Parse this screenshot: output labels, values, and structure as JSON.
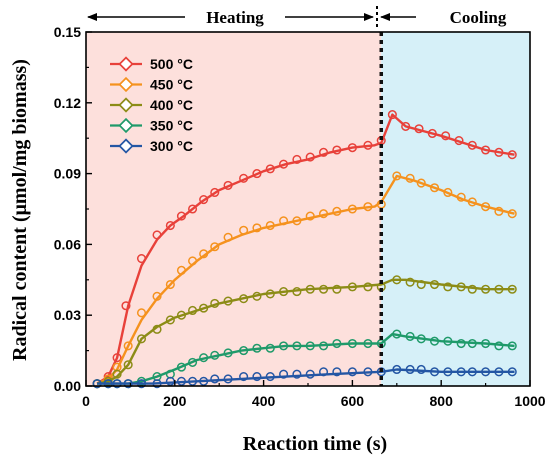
{
  "chart_data": {
    "type": "line",
    "xlabel": "Reaction time (s)",
    "ylabel": "Radical content (μmol/mg biomass)",
    "xlim": [
      0,
      1000
    ],
    "ylim": [
      0,
      0.15
    ],
    "xticks": [
      "0",
      "200",
      "400",
      "600",
      "800",
      "1000"
    ],
    "yticks": [
      "0.00",
      "0.03",
      "0.06",
      "0.09",
      "0.12",
      "0.15"
    ],
    "grid": false,
    "legend_position": "top-left",
    "phases": [
      {
        "label": "Heating",
        "x_start": 0,
        "x_end": 665,
        "color": "#fde0dc"
      },
      {
        "label": "Cooling",
        "x_start": 665,
        "x_end": 1000,
        "color": "#d6f0f8"
      }
    ],
    "phase_boundary_x": 665,
    "colors": {
      "500": "#e8413a",
      "450": "#f5921e",
      "400": "#8c8c16",
      "350": "#1f9a6a",
      "300": "#2456a4"
    },
    "series": [
      {
        "name": "500  °C",
        "key": "500",
        "points": [
          [
            25,
            0.001
          ],
          [
            50,
            0.004
          ],
          [
            70,
            0.012
          ],
          [
            90,
            0.034
          ],
          [
            125,
            0.054
          ],
          [
            160,
            0.064
          ],
          [
            190,
            0.068
          ],
          [
            215,
            0.072
          ],
          [
            240,
            0.075
          ],
          [
            265,
            0.079
          ],
          [
            290,
            0.082
          ],
          [
            320,
            0.085
          ],
          [
            355,
            0.088
          ],
          [
            385,
            0.09
          ],
          [
            415,
            0.092
          ],
          [
            445,
            0.094
          ],
          [
            475,
            0.096
          ],
          [
            505,
            0.097
          ],
          [
            535,
            0.099
          ],
          [
            565,
            0.1
          ],
          [
            600,
            0.101
          ],
          [
            635,
            0.102
          ],
          [
            665,
            0.104
          ],
          [
            690,
            0.115
          ],
          [
            720,
            0.11
          ],
          [
            750,
            0.109
          ],
          [
            780,
            0.107
          ],
          [
            810,
            0.106
          ],
          [
            840,
            0.104
          ],
          [
            870,
            0.102
          ],
          [
            900,
            0.1
          ],
          [
            930,
            0.099
          ],
          [
            960,
            0.098
          ]
        ],
        "line": [
          [
            25,
            0.001
          ],
          [
            50,
            0.004
          ],
          [
            70,
            0.012
          ],
          [
            95,
            0.034
          ],
          [
            125,
            0.051
          ],
          [
            160,
            0.062
          ],
          [
            190,
            0.068
          ],
          [
            220,
            0.072
          ],
          [
            260,
            0.078
          ],
          [
            300,
            0.083
          ],
          [
            350,
            0.087
          ],
          [
            400,
            0.091
          ],
          [
            450,
            0.094
          ],
          [
            500,
            0.096
          ],
          [
            550,
            0.099
          ],
          [
            600,
            0.101
          ],
          [
            650,
            0.102
          ],
          [
            665,
            0.103
          ],
          [
            690,
            0.115
          ],
          [
            720,
            0.11
          ],
          [
            760,
            0.108
          ],
          [
            800,
            0.106
          ],
          [
            850,
            0.103
          ],
          [
            900,
            0.1
          ],
          [
            965,
            0.098
          ]
        ]
      },
      {
        "name": "450  °C",
        "key": "450",
        "points": [
          [
            25,
            0.001
          ],
          [
            50,
            0.003
          ],
          [
            70,
            0.008
          ],
          [
            95,
            0.017
          ],
          [
            125,
            0.031
          ],
          [
            160,
            0.038
          ],
          [
            190,
            0.043
          ],
          [
            215,
            0.049
          ],
          [
            240,
            0.053
          ],
          [
            265,
            0.056
          ],
          [
            290,
            0.059
          ],
          [
            320,
            0.063
          ],
          [
            355,
            0.066
          ],
          [
            385,
            0.067
          ],
          [
            415,
            0.068
          ],
          [
            445,
            0.07
          ],
          [
            475,
            0.07
          ],
          [
            505,
            0.072
          ],
          [
            535,
            0.073
          ],
          [
            565,
            0.074
          ],
          [
            600,
            0.075
          ],
          [
            635,
            0.076
          ],
          [
            665,
            0.077
          ],
          [
            700,
            0.089
          ],
          [
            730,
            0.088
          ],
          [
            755,
            0.086
          ],
          [
            785,
            0.084
          ],
          [
            815,
            0.082
          ],
          [
            845,
            0.08
          ],
          [
            870,
            0.078
          ],
          [
            900,
            0.076
          ],
          [
            930,
            0.074
          ],
          [
            960,
            0.073
          ]
        ],
        "line": [
          [
            25,
            0.001
          ],
          [
            50,
            0.003
          ],
          [
            70,
            0.007
          ],
          [
            95,
            0.017
          ],
          [
            125,
            0.028
          ],
          [
            160,
            0.037
          ],
          [
            200,
            0.045
          ],
          [
            250,
            0.053
          ],
          [
            300,
            0.06
          ],
          [
            350,
            0.064
          ],
          [
            400,
            0.067
          ],
          [
            450,
            0.069
          ],
          [
            500,
            0.071
          ],
          [
            550,
            0.073
          ],
          [
            600,
            0.075
          ],
          [
            650,
            0.076
          ],
          [
            665,
            0.078
          ],
          [
            700,
            0.089
          ],
          [
            740,
            0.087
          ],
          [
            800,
            0.083
          ],
          [
            850,
            0.079
          ],
          [
            900,
            0.076
          ],
          [
            965,
            0.073
          ]
        ]
      },
      {
        "name": "400  °C",
        "key": "400",
        "points": [
          [
            25,
            0.001
          ],
          [
            50,
            0.002
          ],
          [
            70,
            0.005
          ],
          [
            95,
            0.009
          ],
          [
            125,
            0.02
          ],
          [
            160,
            0.024
          ],
          [
            190,
            0.028
          ],
          [
            215,
            0.03
          ],
          [
            240,
            0.032
          ],
          [
            265,
            0.033
          ],
          [
            290,
            0.035
          ],
          [
            320,
            0.036
          ],
          [
            355,
            0.037
          ],
          [
            385,
            0.038
          ],
          [
            415,
            0.039
          ],
          [
            445,
            0.04
          ],
          [
            475,
            0.04
          ],
          [
            505,
            0.041
          ],
          [
            535,
            0.041
          ],
          [
            565,
            0.041
          ],
          [
            600,
            0.042
          ],
          [
            635,
            0.042
          ],
          [
            665,
            0.042
          ],
          [
            700,
            0.045
          ],
          [
            730,
            0.044
          ],
          [
            755,
            0.043
          ],
          [
            785,
            0.043
          ],
          [
            815,
            0.042
          ],
          [
            845,
            0.042
          ],
          [
            870,
            0.041
          ],
          [
            900,
            0.041
          ],
          [
            930,
            0.041
          ],
          [
            960,
            0.041
          ]
        ],
        "line": [
          [
            25,
            0.001
          ],
          [
            50,
            0.002
          ],
          [
            70,
            0.004
          ],
          [
            95,
            0.009
          ],
          [
            125,
            0.02
          ],
          [
            160,
            0.025
          ],
          [
            200,
            0.029
          ],
          [
            250,
            0.032
          ],
          [
            300,
            0.035
          ],
          [
            350,
            0.037
          ],
          [
            400,
            0.039
          ],
          [
            450,
            0.04
          ],
          [
            500,
            0.041
          ],
          [
            600,
            0.042
          ],
          [
            665,
            0.043
          ],
          [
            690,
            0.045
          ],
          [
            720,
            0.045
          ],
          [
            800,
            0.043
          ],
          [
            900,
            0.041
          ],
          [
            965,
            0.041
          ]
        ]
      },
      {
        "name": "350  °C",
        "key": "350",
        "points": [
          [
            25,
            0.001
          ],
          [
            50,
            0.001
          ],
          [
            70,
            0.001
          ],
          [
            95,
            0.001
          ],
          [
            125,
            0.002
          ],
          [
            160,
            0.004
          ],
          [
            190,
            0.005
          ],
          [
            215,
            0.008
          ],
          [
            240,
            0.01
          ],
          [
            265,
            0.012
          ],
          [
            290,
            0.013
          ],
          [
            320,
            0.014
          ],
          [
            355,
            0.015
          ],
          [
            385,
            0.016
          ],
          [
            415,
            0.016
          ],
          [
            445,
            0.017
          ],
          [
            475,
            0.017
          ],
          [
            505,
            0.017
          ],
          [
            535,
            0.017
          ],
          [
            565,
            0.018
          ],
          [
            600,
            0.018
          ],
          [
            635,
            0.018
          ],
          [
            665,
            0.018
          ],
          [
            700,
            0.022
          ],
          [
            730,
            0.021
          ],
          [
            755,
            0.02
          ],
          [
            785,
            0.019
          ],
          [
            815,
            0.019
          ],
          [
            845,
            0.018
          ],
          [
            870,
            0.018
          ],
          [
            900,
            0.018
          ],
          [
            930,
            0.017
          ],
          [
            960,
            0.017
          ]
        ],
        "line": [
          [
            25,
            0.001
          ],
          [
            95,
            0.001
          ],
          [
            125,
            0.002
          ],
          [
            160,
            0.004
          ],
          [
            200,
            0.007
          ],
          [
            250,
            0.011
          ],
          [
            300,
            0.013
          ],
          [
            350,
            0.015
          ],
          [
            400,
            0.016
          ],
          [
            450,
            0.017
          ],
          [
            500,
            0.017
          ],
          [
            600,
            0.018
          ],
          [
            665,
            0.018
          ],
          [
            690,
            0.022
          ],
          [
            720,
            0.021
          ],
          [
            800,
            0.019
          ],
          [
            900,
            0.018
          ],
          [
            965,
            0.017
          ]
        ]
      },
      {
        "name": "300  °C",
        "key": "300",
        "points": [
          [
            25,
            0.001
          ],
          [
            50,
            0.001
          ],
          [
            70,
            0.001
          ],
          [
            95,
            0.001
          ],
          [
            125,
            0.001
          ],
          [
            160,
            0.001
          ],
          [
            190,
            0.002
          ],
          [
            215,
            0.002
          ],
          [
            240,
            0.002
          ],
          [
            265,
            0.002
          ],
          [
            290,
            0.003
          ],
          [
            320,
            0.003
          ],
          [
            355,
            0.004
          ],
          [
            385,
            0.004
          ],
          [
            415,
            0.004
          ],
          [
            445,
            0.005
          ],
          [
            475,
            0.005
          ],
          [
            505,
            0.005
          ],
          [
            535,
            0.006
          ],
          [
            565,
            0.006
          ],
          [
            600,
            0.006
          ],
          [
            635,
            0.006
          ],
          [
            665,
            0.006
          ],
          [
            700,
            0.007
          ],
          [
            730,
            0.007
          ],
          [
            755,
            0.007
          ],
          [
            785,
            0.006
          ],
          [
            815,
            0.006
          ],
          [
            845,
            0.006
          ],
          [
            870,
            0.006
          ],
          [
            900,
            0.006
          ],
          [
            930,
            0.006
          ],
          [
            960,
            0.006
          ]
        ],
        "line": [
          [
            25,
            0.001
          ],
          [
            150,
            0.001
          ],
          [
            250,
            0.002
          ],
          [
            350,
            0.003
          ],
          [
            450,
            0.004
          ],
          [
            550,
            0.005
          ],
          [
            665,
            0.006
          ],
          [
            700,
            0.007
          ],
          [
            800,
            0.006
          ],
          [
            965,
            0.006
          ]
        ]
      }
    ]
  }
}
